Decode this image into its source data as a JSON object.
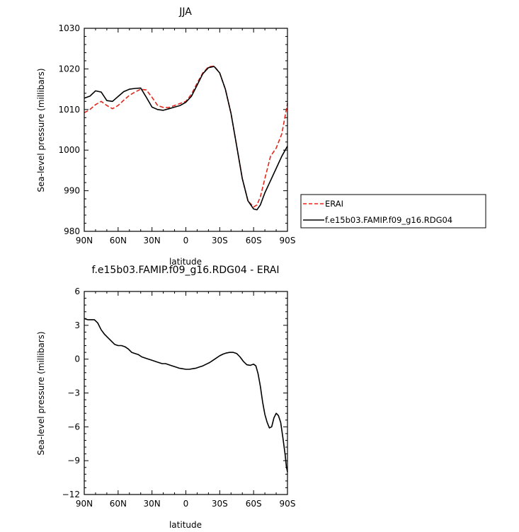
{
  "chart_data": [
    {
      "type": "line",
      "title": "JJA",
      "xlabel": "latitude",
      "ylabel": "Sea-level pressure (millibars)",
      "xlim": [
        90,
        -90
      ],
      "ylim": [
        980,
        1030
      ],
      "xticks": [
        90,
        60,
        30,
        0,
        -30,
        -60,
        -90
      ],
      "xtick_labels": [
        "90N",
        "60N",
        "30N",
        "0",
        "30S",
        "60S",
        "90S"
      ],
      "yticks": [
        980,
        990,
        1000,
        1010,
        1020,
        1030
      ],
      "ytick_labels": [
        "980",
        "990",
        "1000",
        "1010",
        "1020",
        "1030"
      ],
      "legend_position": "right",
      "series": [
        {
          "name": "ERAI",
          "color": "#e3261c",
          "dash": "dashed",
          "x": [
            90,
            85,
            80,
            75,
            70,
            65,
            60,
            55,
            50,
            45,
            40,
            35,
            30,
            25,
            20,
            15,
            10,
            5,
            0,
            -5,
            -10,
            -15,
            -20,
            -25,
            -30,
            -35,
            -40,
            -45,
            -50,
            -55,
            -60,
            -63,
            -66,
            -70,
            -75,
            -80,
            -85,
            -88,
            -90
          ],
          "y": [
            1009.2,
            1010.0,
            1011.2,
            1012.0,
            1011.0,
            1010.2,
            1011.0,
            1012.3,
            1013.5,
            1014.3,
            1015.0,
            1014.8,
            1013.0,
            1011.0,
            1010.5,
            1010.5,
            1011.0,
            1011.5,
            1012.0,
            1013.8,
            1016.5,
            1019.0,
            1020.5,
            1020.7,
            1019.0,
            1015.0,
            1009.0,
            1001.0,
            993.0,
            987.5,
            986.0,
            986.5,
            988.5,
            993.0,
            998.5,
            1000.5,
            1004.0,
            1008.5,
            1011.5
          ]
        },
        {
          "name": "f.e15b03.FAMIP.f09_g16.RDG04",
          "color": "#000000",
          "dash": "solid",
          "x": [
            90,
            85,
            80,
            75,
            70,
            65,
            60,
            55,
            50,
            45,
            40,
            35,
            30,
            25,
            20,
            15,
            10,
            5,
            0,
            -5,
            -10,
            -15,
            -20,
            -25,
            -30,
            -35,
            -40,
            -45,
            -50,
            -55,
            -60,
            -63,
            -66,
            -70,
            -75,
            -80,
            -85,
            -88,
            -90
          ],
          "y": [
            1012.8,
            1013.3,
            1014.6,
            1014.3,
            1012.2,
            1012.0,
            1013.2,
            1014.4,
            1015.0,
            1015.2,
            1015.3,
            1013.0,
            1010.6,
            1010.0,
            1009.8,
            1010.2,
            1010.6,
            1011.0,
            1011.8,
            1013.3,
            1016.0,
            1018.8,
            1020.3,
            1020.6,
            1019.0,
            1015.0,
            1009.0,
            1001.0,
            993.0,
            987.5,
            985.5,
            985.3,
            986.5,
            989.5,
            992.5,
            995.5,
            998.5,
            1000.0,
            1001.0
          ]
        }
      ]
    },
    {
      "type": "line",
      "title": "f.e15b03.FAMIP.f09_g16.RDG04 - ERAI",
      "xlabel": "latitude",
      "ylabel": "Sea-level pressure (millibars)",
      "xlim": [
        90,
        -90
      ],
      "ylim": [
        -12,
        6
      ],
      "xticks": [
        90,
        60,
        30,
        0,
        -30,
        -60,
        -90
      ],
      "xtick_labels": [
        "90N",
        "60N",
        "30N",
        "0",
        "30S",
        "60S",
        "90S"
      ],
      "yticks": [
        -12,
        -9,
        -6,
        -3,
        0,
        3,
        6
      ],
      "ytick_labels": [
        "−12",
        "−9",
        "−6",
        "−3",
        "0",
        "3",
        "6"
      ],
      "series": [
        {
          "color": "#000000",
          "dash": "solid",
          "x": [
            90,
            87,
            84,
            81,
            78,
            75,
            72,
            69,
            66,
            63,
            60,
            57,
            54,
            51,
            48,
            45,
            42,
            39,
            36,
            33,
            30,
            27,
            24,
            21,
            18,
            15,
            12,
            9,
            6,
            3,
            0,
            -3,
            -6,
            -9,
            -12,
            -15,
            -18,
            -21,
            -24,
            -27,
            -30,
            -33,
            -36,
            -39,
            -42,
            -45,
            -48,
            -51,
            -54,
            -57,
            -60,
            -62,
            -64,
            -66,
            -68,
            -70,
            -72,
            -74,
            -76,
            -77,
            -78,
            -80,
            -82,
            -84,
            -86,
            -88,
            -89,
            -90
          ],
          "y": [
            3.6,
            3.5,
            3.5,
            3.5,
            3.2,
            2.6,
            2.2,
            1.9,
            1.6,
            1.3,
            1.2,
            1.2,
            1.1,
            0.9,
            0.6,
            0.5,
            0.4,
            0.2,
            0.1,
            0.0,
            -0.1,
            -0.2,
            -0.3,
            -0.4,
            -0.4,
            -0.5,
            -0.6,
            -0.7,
            -0.8,
            -0.85,
            -0.9,
            -0.9,
            -0.85,
            -0.8,
            -0.7,
            -0.6,
            -0.45,
            -0.3,
            -0.1,
            0.1,
            0.3,
            0.45,
            0.55,
            0.6,
            0.6,
            0.5,
            0.2,
            -0.2,
            -0.5,
            -0.55,
            -0.45,
            -0.6,
            -1.3,
            -2.4,
            -3.8,
            -4.9,
            -5.6,
            -6.1,
            -6.0,
            -5.6,
            -5.2,
            -4.8,
            -5.0,
            -5.6,
            -7.0,
            -8.5,
            -9.5,
            -10.0
          ]
        }
      ]
    }
  ]
}
